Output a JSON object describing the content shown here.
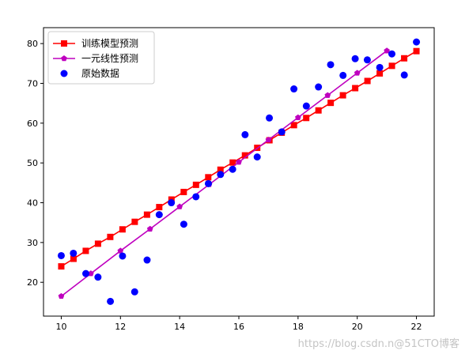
{
  "chart_data": {
    "type": "line",
    "xlim": [
      9.4,
      22.6
    ],
    "ylim": [
      11.5,
      84
    ],
    "xticks": [
      10,
      12,
      14,
      16,
      18,
      20,
      22
    ],
    "yticks": [
      20,
      30,
      40,
      50,
      60,
      70,
      80
    ],
    "grid": false,
    "legend_placement": "top-left",
    "series": [
      {
        "name": "训练模型预测",
        "type": "line",
        "color": "#ff0000",
        "marker": "square",
        "x": [
          10,
          10.414,
          10.828,
          11.241,
          11.655,
          12.069,
          12.483,
          12.897,
          13.31,
          13.724,
          14.138,
          14.552,
          14.966,
          15.379,
          15.793,
          16.207,
          16.621,
          17.034,
          17.448,
          17.862,
          18.276,
          18.69,
          19.103,
          19.517,
          19.931,
          20.345,
          20.759,
          21.172,
          21.586,
          22
        ],
        "y": [
          24.0,
          25.9,
          27.9,
          29.7,
          31.4,
          33.3,
          35.2,
          37.0,
          38.9,
          40.8,
          42.7,
          44.5,
          46.4,
          48.3,
          50.1,
          51.9,
          53.8,
          55.7,
          57.6,
          59.5,
          61.3,
          63.2,
          65.1,
          67.0,
          68.8,
          70.6,
          72.5,
          74.4,
          76.3,
          78.1
        ]
      },
      {
        "name": "一元线性预测",
        "type": "line",
        "color": "#bf00bf",
        "marker": "pentagon",
        "x": [
          10,
          11,
          12,
          13,
          14,
          15,
          16,
          17,
          18,
          19,
          20,
          21
        ],
        "y": [
          16.5,
          22.2,
          27.9,
          33.4,
          39.0,
          44.6,
          50.2,
          55.8,
          61.4,
          67.0,
          72.6,
          78.2
        ]
      },
      {
        "name": "原始数据",
        "type": "scatter",
        "color": "#0000ff",
        "marker": "circle",
        "x": [
          10,
          10.41,
          10.83,
          11.24,
          11.66,
          12.07,
          12.48,
          12.9,
          13.31,
          13.72,
          14.14,
          14.55,
          14.97,
          15.38,
          15.79,
          16.21,
          16.62,
          17.03,
          17.45,
          17.86,
          18.28,
          18.69,
          19.1,
          19.52,
          19.93,
          20.34,
          20.76,
          21.17,
          21.59,
          22
        ],
        "y": [
          26.7,
          27.3,
          22.2,
          21.3,
          15.2,
          26.6,
          17.6,
          25.6,
          37.0,
          40.0,
          34.6,
          41.5,
          44.8,
          47.1,
          48.4,
          57.1,
          51.5,
          61.3,
          57.8,
          68.6,
          64.3,
          69.1,
          74.7,
          72.0,
          76.2,
          75.9,
          74.0,
          77.4,
          72.1,
          80.4
        ]
      }
    ]
  },
  "watermark": "https://blog.csdn.n@51CTO博客"
}
